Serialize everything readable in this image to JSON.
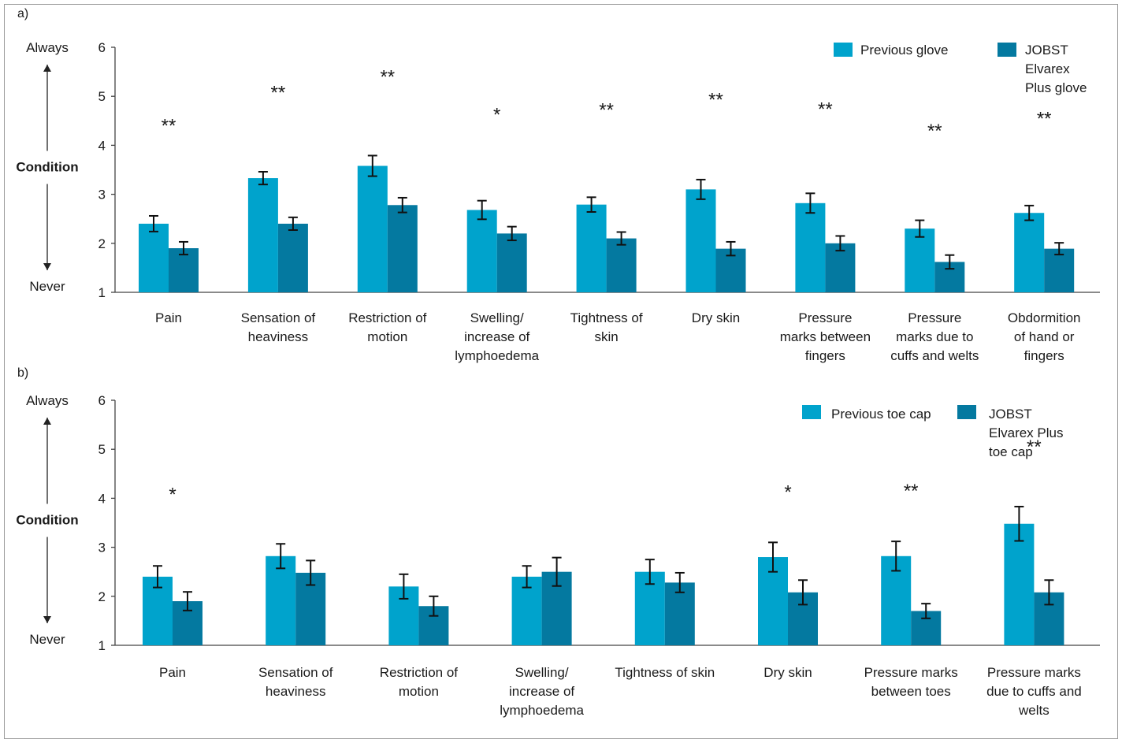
{
  "chart_data": [
    {
      "panel_label": "a)",
      "type": "bar",
      "y_top_label": "Always",
      "y_bottom_label": "Never",
      "y_middle_label": "Condition",
      "ylim": [
        1,
        6
      ],
      "yticks": [
        "1",
        "2",
        "3",
        "4",
        "5",
        "6"
      ],
      "categories": [
        [
          "Pain"
        ],
        [
          "Sensation of",
          "heaviness"
        ],
        [
          "Restriction of",
          "motion"
        ],
        [
          "Swelling/",
          "increase of",
          "lymphoedema"
        ],
        [
          "Tightness of",
          "skin"
        ],
        [
          "Dry skin"
        ],
        [
          "Pressure",
          "marks between",
          "fingers"
        ],
        [
          "Pressure",
          "marks due to",
          "cuffs and welts"
        ],
        [
          "Obdormition",
          "of hand or",
          "fingers"
        ]
      ],
      "series": [
        {
          "name": "Previous glove",
          "legend_lines": [
            "Previous glove"
          ],
          "color": "#00a3cc",
          "values": [
            2.4,
            3.33,
            3.58,
            2.68,
            2.79,
            3.1,
            2.82,
            2.3,
            2.62
          ],
          "errors": [
            0.16,
            0.13,
            0.21,
            0.19,
            0.15,
            0.2,
            0.2,
            0.17,
            0.15
          ]
        },
        {
          "name": "JOBST Elvarex Plus glove",
          "legend_lines": [
            "JOBST",
            "Elvarex",
            "Plus glove"
          ],
          "color": "#0479a0",
          "values": [
            1.9,
            2.4,
            2.78,
            2.2,
            2.1,
            1.89,
            2.0,
            1.62,
            1.89
          ],
          "errors": [
            0.13,
            0.13,
            0.15,
            0.14,
            0.13,
            0.14,
            0.15,
            0.14,
            0.12
          ]
        }
      ],
      "significance": [
        "**",
        "**",
        "**",
        "*",
        "**",
        "**",
        "**",
        "**",
        "**"
      ],
      "significance_y": [
        4.27,
        4.95,
        5.27,
        4.5,
        4.59,
        4.8,
        4.61,
        4.17,
        4.42
      ]
    },
    {
      "panel_label": "b)",
      "type": "bar",
      "y_top_label": "Always",
      "y_bottom_label": "Never",
      "y_middle_label": "Condition",
      "ylim": [
        1,
        6
      ],
      "yticks": [
        "1",
        "2",
        "3",
        "4",
        "5",
        "6"
      ],
      "categories": [
        [
          "Pain"
        ],
        [
          "Sensation of",
          "heaviness"
        ],
        [
          "Restriction of",
          "motion"
        ],
        [
          "Swelling/",
          "increase of",
          "lymphoedema"
        ],
        [
          "Tightness of skin"
        ],
        [
          "Dry skin"
        ],
        [
          "Pressure marks",
          "between toes"
        ],
        [
          "Pressure marks",
          "due to cuffs and",
          "welts"
        ]
      ],
      "series": [
        {
          "name": "Previous toe cap",
          "legend_lines": [
            "Previous toe cap"
          ],
          "color": "#00a3cc",
          "values": [
            2.4,
            2.82,
            2.2,
            2.4,
            2.5,
            2.8,
            2.82,
            3.48
          ],
          "errors": [
            0.22,
            0.25,
            0.25,
            0.22,
            0.25,
            0.3,
            0.3,
            0.35
          ]
        },
        {
          "name": "JOBST Elvarex Plus toe cap",
          "legend_lines": [
            "JOBST",
            "Elvarex Plus",
            "toe cap"
          ],
          "color": "#0479a0",
          "values": [
            1.9,
            2.48,
            1.8,
            2.5,
            2.28,
            2.08,
            1.7,
            2.08
          ],
          "errors": [
            0.19,
            0.25,
            0.2,
            0.29,
            0.2,
            0.25,
            0.15,
            0.25
          ]
        }
      ],
      "significance": [
        "*",
        "",
        "",
        "",
        "",
        "*",
        "**",
        "**"
      ],
      "significance_y": [
        3.95,
        0,
        0,
        0,
        0,
        4.0,
        4.02,
        4.92
      ]
    }
  ]
}
